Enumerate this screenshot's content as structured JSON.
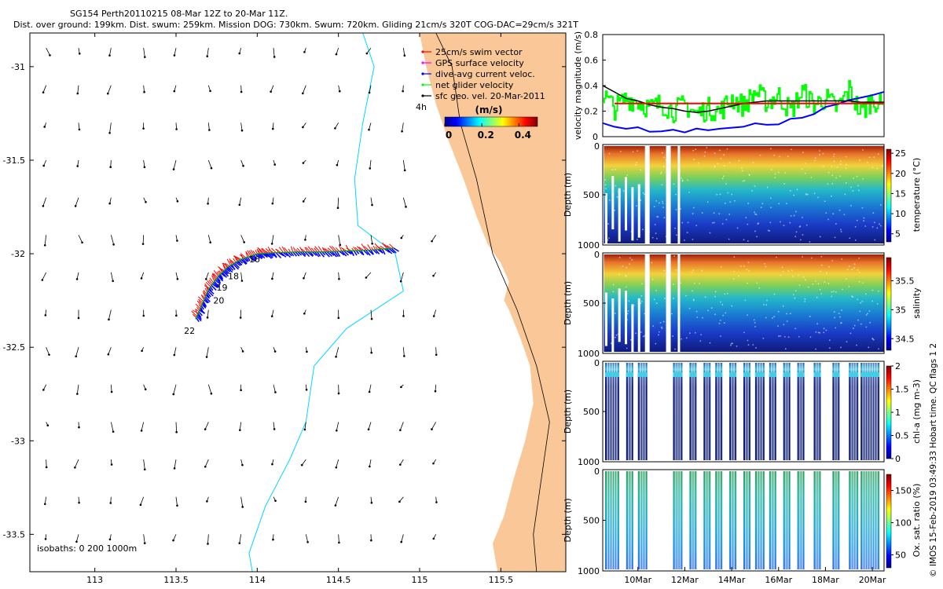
{
  "header": {
    "title_line1": "SG154 Perth20110215 08-Mar 12Z to 20-Mar 11Z.",
    "title_line2": "Dist. over ground: 199km. Dist. swum: 259km. Mission DOG: 730km. Swum: 720km. Gliding 21cm/s 320T COG-DAC=29cm/s 321T"
  },
  "credit": "© IMOS 15-Feb-2019 03:49:33 Hobart time. QC flags 1  2",
  "colors": {
    "land": "#fac898",
    "isobath_200": "#00d8ff",
    "coast": "#000000",
    "swim": "#ff0000",
    "gps": "#ff00ff",
    "dac": "#0000ff",
    "net": "#00ff00",
    "geo": "#000000",
    "velocity_mean": "#ff0000",
    "velocity_smooth": "#000000"
  },
  "chart_data": [
    {
      "type": "map",
      "name": "track-map",
      "xlim": [
        112.6,
        115.9
      ],
      "ylim": [
        -33.7,
        -30.82
      ],
      "xticks": [
        113,
        113.5,
        114,
        114.5,
        115,
        115.5
      ],
      "yticks": [
        -31,
        -31.5,
        -32,
        -32.5,
        -33,
        -33.5
      ],
      "xtick_labels": [
        "113",
        "113.5",
        "114",
        "114.5",
        "115",
        "115.5"
      ],
      "ytick_labels": [
        "-31",
        "-31.5",
        "-32",
        "-32.5",
        "-33",
        "-33.5"
      ],
      "isobath_label": "isobaths: 0   200   1000m",
      "time_annotation": "4h",
      "legend": [
        {
          "label": "25cm/s swim vector",
          "color": "#ff0000"
        },
        {
          "label": "GPS surface velocity",
          "color": "#ff00ff"
        },
        {
          "label": "dive-avg current veloc.",
          "color": "#0000ff"
        },
        {
          "label": "net glider velocity",
          "color": "#00ff00"
        },
        {
          "label": "sfc geo. vel. 20-Mar-2011",
          "color": "#000000"
        }
      ],
      "colorbar": {
        "title": "(m/s)",
        "ticks": [
          0,
          0.2,
          0.4
        ],
        "tick_labels": [
          "0",
          "0.2",
          "0.4"
        ],
        "range": [
          0,
          0.5
        ]
      },
      "track_day_labels": [
        "16",
        "18",
        "19",
        "20",
        "22"
      ],
      "track": [
        [
          114.84,
          -31.97
        ],
        [
          114.7,
          -31.98
        ],
        [
          114.55,
          -31.985
        ],
        [
          114.4,
          -31.99
        ],
        [
          114.25,
          -31.99
        ],
        [
          114.1,
          -31.995
        ],
        [
          114.0,
          -32.0
        ],
        [
          113.9,
          -32.03
        ],
        [
          113.82,
          -32.07
        ],
        [
          113.76,
          -32.12
        ],
        [
          113.7,
          -32.19
        ],
        [
          113.66,
          -32.27
        ],
        [
          113.62,
          -32.35
        ]
      ],
      "track_day_points": [
        [
          114.06,
          -32.0
        ],
        [
          113.93,
          -32.03
        ],
        [
          113.8,
          -32.12
        ],
        [
          113.73,
          -32.18
        ],
        [
          113.7,
          -32.25
        ],
        [
          113.52,
          -32.37
        ]
      ],
      "coastline": [
        [
          115.0,
          -30.82
        ],
        [
          115.04,
          -31.0
        ],
        [
          115.1,
          -31.2
        ],
        [
          115.18,
          -31.4
        ],
        [
          115.27,
          -31.6
        ],
        [
          115.35,
          -31.8
        ],
        [
          115.42,
          -31.95
        ],
        [
          115.5,
          -32.05
        ],
        [
          115.55,
          -32.15
        ],
        [
          115.52,
          -32.25
        ],
        [
          115.55,
          -32.3
        ],
        [
          115.62,
          -32.45
        ],
        [
          115.68,
          -32.6
        ],
        [
          115.7,
          -32.8
        ],
        [
          115.65,
          -33.0
        ],
        [
          115.58,
          -33.2
        ],
        [
          115.52,
          -33.4
        ],
        [
          115.45,
          -33.55
        ],
        [
          115.48,
          -33.7
        ]
      ],
      "isobath_200m": [
        [
          114.65,
          -30.82
        ],
        [
          114.72,
          -31.0
        ],
        [
          114.65,
          -31.3
        ],
        [
          114.6,
          -31.6
        ],
        [
          114.62,
          -31.85
        ],
        [
          114.85,
          -32.0
        ],
        [
          114.9,
          -32.2
        ],
        [
          114.55,
          -32.4
        ],
        [
          114.35,
          -32.6
        ],
        [
          114.3,
          -32.9
        ],
        [
          114.2,
          -33.1
        ],
        [
          114.05,
          -33.35
        ],
        [
          113.95,
          -33.6
        ],
        [
          113.97,
          -33.7
        ]
      ],
      "isobath_0m": [
        [
          115.1,
          -30.82
        ],
        [
          115.2,
          -31.0
        ],
        [
          115.25,
          -31.3
        ],
        [
          115.35,
          -31.6
        ],
        [
          115.45,
          -32.0
        ],
        [
          115.6,
          -32.3
        ],
        [
          115.72,
          -32.6
        ],
        [
          115.8,
          -32.9
        ],
        [
          115.75,
          -33.2
        ],
        [
          115.7,
          -33.5
        ],
        [
          115.72,
          -33.7
        ]
      ]
    },
    {
      "type": "line",
      "name": "velocity-magnitude",
      "ylabel": "velocity magnitude (m/s)",
      "ylim": [
        0,
        0.8
      ],
      "yticks": [
        0,
        0.2,
        0.4,
        0.6,
        0.8
      ],
      "ytick_labels": [
        "0",
        "0.2",
        "0.4",
        "0.6",
        "0.8"
      ],
      "xlim": [
        8.5,
        20.5
      ],
      "series": [
        {
          "name": "net glider velocity",
          "color": "#00ff00",
          "x": [
            8.5,
            9.0,
            9.5,
            10.0,
            10.5,
            11.0,
            11.5,
            12.0,
            12.5,
            13.0,
            13.5,
            14.0,
            14.5,
            15.0,
            15.5,
            16.0,
            16.5,
            17.0,
            17.5,
            18.0,
            18.5,
            19.0,
            19.5,
            20.0,
            20.5
          ],
          "y": [
            0.33,
            0.22,
            0.3,
            0.28,
            0.22,
            0.26,
            0.2,
            0.25,
            0.18,
            0.22,
            0.2,
            0.3,
            0.24,
            0.35,
            0.27,
            0.32,
            0.2,
            0.35,
            0.25,
            0.3,
            0.22,
            0.37,
            0.18,
            0.3,
            0.22
          ]
        },
        {
          "name": "dive-avg current veloc.",
          "color": "#0000ff",
          "x": [
            8.5,
            9.0,
            9.5,
            10.0,
            10.5,
            11.0,
            11.5,
            12.0,
            12.5,
            13.0,
            13.5,
            14.0,
            14.5,
            15.0,
            15.5,
            16.0,
            16.5,
            17.0,
            17.5,
            18.0,
            18.5,
            19.0,
            19.5,
            20.0,
            20.5
          ],
          "y": [
            0.12,
            0.08,
            0.07,
            0.06,
            0.05,
            0.05,
            0.05,
            0.04,
            0.05,
            0.06,
            0.07,
            0.06,
            0.08,
            0.09,
            0.1,
            0.11,
            0.13,
            0.15,
            0.18,
            0.22,
            0.25,
            0.28,
            0.3,
            0.33,
            0.34
          ]
        },
        {
          "name": "smoothed",
          "color": "#000000",
          "x": [
            8.5,
            9.0,
            9.5,
            10.0,
            10.5,
            11.0,
            11.5,
            12.0,
            12.5,
            13.0,
            13.5,
            14.0,
            14.5,
            15.0,
            15.5,
            16.0,
            16.5,
            17.0,
            17.5,
            18.0,
            18.5,
            19.0,
            19.5,
            20.0,
            20.5
          ],
          "y": [
            0.4,
            0.35,
            0.3,
            0.28,
            0.25,
            0.23,
            0.22,
            0.2,
            0.19,
            0.2,
            0.22,
            0.24,
            0.26,
            0.27,
            0.28,
            0.28,
            0.28,
            0.28,
            0.28,
            0.28,
            0.28,
            0.28,
            0.27,
            0.27,
            0.27
          ]
        },
        {
          "name": "mean",
          "color": "#ff0000",
          "x": [
            9.0,
            20.5
          ],
          "y": [
            0.26,
            0.26
          ]
        }
      ]
    },
    {
      "type": "heatmap",
      "name": "temperature-section",
      "ylabel": "Depth (m)",
      "ylim": [
        1000,
        0
      ],
      "yticks": [
        0,
        500,
        1000
      ],
      "ytick_labels": [
        "0",
        "500",
        "1000"
      ],
      "cbar_label": "temperature (°C)",
      "cbar_range": [
        3,
        26
      ],
      "cbar_ticks": [
        5,
        10,
        15,
        20,
        25
      ],
      "cbar_tick_labels": [
        "5",
        "10",
        "15",
        "20",
        "25"
      ],
      "profile_depth_max": [
        1000,
        1000,
        1000,
        1000,
        1000
      ],
      "gaps_days": [
        [
          10.3,
          10.5
        ],
        [
          11.2,
          11.4
        ],
        [
          11.7,
          11.8
        ]
      ]
    },
    {
      "type": "heatmap",
      "name": "salinity-section",
      "ylabel": "Depth (m)",
      "ylim": [
        1000,
        0
      ],
      "yticks": [
        0,
        500,
        1000
      ],
      "ytick_labels": [
        "0",
        "500",
        "1000"
      ],
      "cbar_label": "salinity",
      "cbar_range": [
        34.3,
        35.9
      ],
      "cbar_ticks": [
        34.5,
        35,
        35.5
      ],
      "cbar_tick_labels": [
        "34.5",
        "35",
        "35.5"
      ],
      "gaps_days": [
        [
          10.3,
          10.5
        ],
        [
          11.2,
          11.4
        ],
        [
          11.7,
          11.8
        ]
      ]
    },
    {
      "type": "heatmap",
      "name": "chlorophyll-section",
      "ylabel": "Depth (m)",
      "ylim": [
        1000,
        0
      ],
      "yticks": [
        0,
        500,
        1000
      ],
      "ytick_labels": [
        "0",
        "500",
        "1000"
      ],
      "cbar_label": "chl-a (mg m-3)",
      "cbar_range": [
        0,
        2
      ],
      "cbar_ticks": [
        0,
        0.5,
        1,
        1.5,
        2
      ],
      "cbar_tick_labels": [
        "0",
        "0.5",
        "1",
        "1.5",
        "2"
      ]
    },
    {
      "type": "heatmap",
      "name": "oxygen-section",
      "ylabel": "Depth (m)",
      "ylim": [
        1000,
        0
      ],
      "yticks": [
        0,
        500,
        1000
      ],
      "ytick_labels": [
        "0",
        "500",
        "1000"
      ],
      "cbar_label": "Ox. sat. ratio (%)",
      "cbar_range": [
        30,
        175
      ],
      "cbar_ticks": [
        50,
        100,
        150
      ],
      "cbar_tick_labels": [
        "50",
        "100",
        "150"
      ],
      "xticks": [
        10,
        12,
        14,
        16,
        18,
        20
      ],
      "xtick_labels": [
        "10Mar",
        "12Mar",
        "14Mar",
        "16Mar",
        "18Mar",
        "20Mar"
      ],
      "xlim": [
        8.5,
        20.5
      ]
    }
  ]
}
